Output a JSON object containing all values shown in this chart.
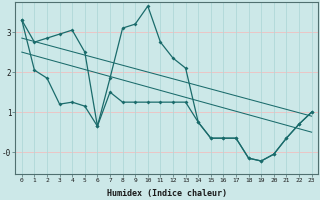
{
  "xlabel": "Humidex (Indice chaleur)",
  "bg_color": "#cce8e8",
  "grid_color_v": "#b0d8d8",
  "grid_color_h": "#f0c0c0",
  "line_color": "#1a6b6b",
  "xlim": [
    -0.5,
    23.5
  ],
  "ylim": [
    -0.55,
    3.75
  ],
  "xticks": [
    0,
    1,
    2,
    3,
    4,
    5,
    6,
    7,
    8,
    9,
    10,
    11,
    12,
    13,
    14,
    15,
    16,
    17,
    18,
    19,
    20,
    21,
    22,
    23
  ],
  "ytick_vals": [
    3,
    2,
    1,
    0
  ],
  "ytick_labels": [
    "3",
    "2",
    "1",
    "-0"
  ],
  "series1_x": [
    0,
    1,
    2,
    3,
    4,
    5,
    6,
    7,
    8,
    9,
    10,
    11,
    12,
    13,
    14,
    15,
    16,
    17,
    18,
    19,
    20,
    21,
    22,
    23
  ],
  "series1_y": [
    3.3,
    2.75,
    2.85,
    2.95,
    3.05,
    2.5,
    0.65,
    1.85,
    3.1,
    3.2,
    3.65,
    2.75,
    2.35,
    2.1,
    0.75,
    0.35,
    0.35,
    0.35,
    -0.15,
    -0.22,
    -0.05,
    0.35,
    0.7,
    1.0
  ],
  "series2_x": [
    0,
    1,
    2,
    3,
    4,
    5,
    6,
    7,
    8,
    9,
    10,
    11,
    12,
    13,
    14,
    15,
    16,
    17,
    18,
    19,
    20,
    21,
    22,
    23
  ],
  "series2_y": [
    3.3,
    2.05,
    1.85,
    1.2,
    1.25,
    1.15,
    0.65,
    1.5,
    1.25,
    1.25,
    1.25,
    1.25,
    1.25,
    1.25,
    0.75,
    0.35,
    0.35,
    0.35,
    -0.15,
    -0.22,
    -0.05,
    0.35,
    0.7,
    1.0
  ],
  "series3_x": [
    0,
    23
  ],
  "series3_y": [
    2.85,
    0.9
  ],
  "series4_x": [
    0,
    23
  ],
  "series4_y": [
    2.5,
    0.5
  ]
}
